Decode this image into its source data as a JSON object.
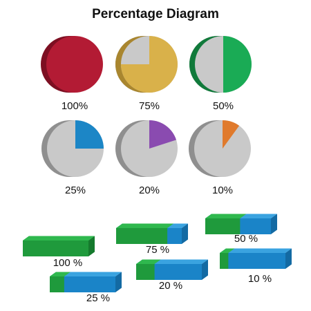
{
  "title": "Percentage Diagram",
  "colors": {
    "gray_face": "#c9c9c9",
    "gray_side": "#8f8f8f",
    "bar_green": "#1f9a3c",
    "bar_green_top": "#2fb84e",
    "bar_green_side": "#157a2d",
    "bar_blue": "#1a84c8",
    "bar_blue_top": "#3aa3e0",
    "bar_blue_side": "#136aa3"
  },
  "pies": [
    {
      "label": "100%",
      "percent": 100,
      "color": "#b31b34",
      "side": "#7d0f22"
    },
    {
      "label": "75%",
      "percent": 75,
      "color": "#d9b14a",
      "side": "#a9862f"
    },
    {
      "label": "50%",
      "percent": 50,
      "color": "#1aab55",
      "side": "#117a3b"
    },
    {
      "label": "25%",
      "percent": 25,
      "color": "#1c86c6",
      "side": "#12638f"
    },
    {
      "label": "20%",
      "percent": 20,
      "color": "#8a4bb0",
      "side": "#633180"
    },
    {
      "label": "10%",
      "percent": 10,
      "color": "#e07a2c",
      "side": "#a9561a"
    }
  ],
  "bars": [
    {
      "label": "100 %",
      "percent": 100
    },
    {
      "label": "75 %",
      "percent": 75
    },
    {
      "label": "50 %",
      "percent": 50
    },
    {
      "label": "25 %",
      "percent": 25
    },
    {
      "label": "20 %",
      "percent": 20
    },
    {
      "label": "10 %",
      "percent": 10
    }
  ]
}
